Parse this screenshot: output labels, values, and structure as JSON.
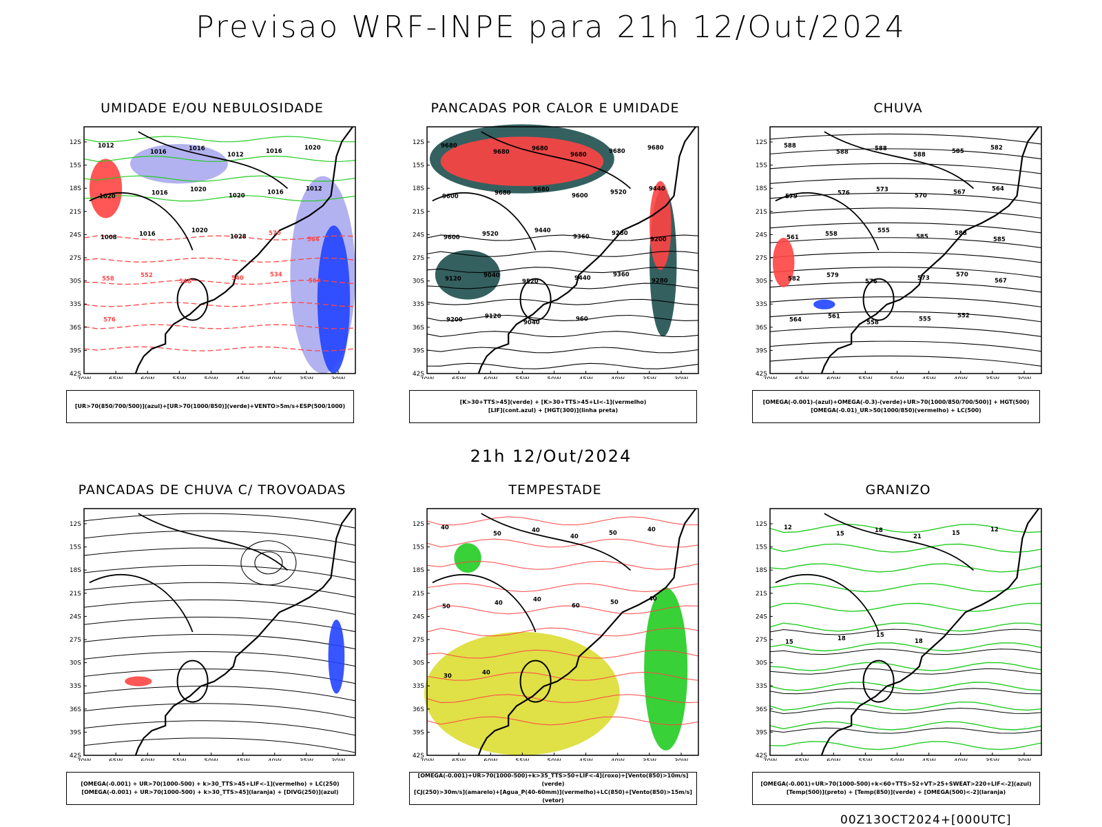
{
  "title": "Previsao WRF-INPE  para 21h 12/Out/2024",
  "mid_title": "21h 12/Out/2024",
  "footer": "00Z13OCT2024+[000UTC]",
  "axes": {
    "lat_labels": [
      "12S",
      "15S",
      "18S",
      "21S",
      "24S",
      "27S",
      "30S",
      "33S",
      "36S",
      "39S",
      "42S"
    ],
    "lon_labels": [
      "70W",
      "65W",
      "60W",
      "55W",
      "50W",
      "45W",
      "40W",
      "35W",
      "30W"
    ]
  },
  "colors": {
    "red": "#ff4444",
    "green": "#22cc22",
    "blue": "#2244ff",
    "lavender": "#aaaaee",
    "teal": "#1f4f4f",
    "yellow": "#dddd33"
  },
  "panels": [
    {
      "title": "UMIDADE E/OU NEBULOSIDADE",
      "legend_lines": [
        "[UR>70(850/700/500)](azul)+[UR>70(1000/850)](verde)+VENTO>5m/s+ESP(500/1000)"
      ],
      "labels": [
        "1012",
        "1016",
        "1016",
        "1012",
        "1016",
        "1020",
        "1020",
        "1016",
        "1020",
        "1020",
        "1016",
        "1012",
        "1008",
        "1016",
        "1020",
        "1028",
        "570",
        "564",
        "558",
        "552",
        "546",
        "540",
        "534",
        "564",
        "576"
      ]
    },
    {
      "title": "PANCADAS POR CALOR E UMIDADE",
      "legend_lines": [
        "[K>30+TTS>45](verde) + [K>30+TTS>45+LI<-1](vermelho)",
        "[LIF](cont.azul) + [HGT(300)](linha preta)"
      ],
      "labels": [
        "9680",
        "9680",
        "9680",
        "9680",
        "9680",
        "9680",
        "9600",
        "9680",
        "9680",
        "9600",
        "9520",
        "9440",
        "9600",
        "9520",
        "9440",
        "9360",
        "9280",
        "9200",
        "9120",
        "9040",
        "9520",
        "9440",
        "9360",
        "9280",
        "9200",
        "9120",
        "9040",
        "960"
      ]
    },
    {
      "title": "CHUVA",
      "legend_lines": [
        "[OMEGA(-0.001)-(azul)+OMEGA(-0.3)-(verde)+UR>70(1000/850/700/500)] + HGT(500)",
        "[OMEGA(-0.01)_UR>50(1000/850)(vermelho) + LC(500)"
      ],
      "labels": [
        "588",
        "588",
        "588",
        "588",
        "585",
        "582",
        "579",
        "576",
        "573",
        "570",
        "567",
        "564",
        "561",
        "558",
        "555",
        "585",
        "588",
        "585",
        "582",
        "579",
        "576",
        "573",
        "570",
        "567",
        "564",
        "561",
        "558",
        "555",
        "552"
      ]
    },
    {
      "title": "PANCADAS DE CHUVA C/ TROVOADAS",
      "legend_lines": [
        "[OMEGA(-0.001) + UR>70(1000-500) + k>30_TTS>45+LIF<-1](vermelho) + LC(250)",
        "[OMEGA(-0.001) + UR>70(1000-500) + k>30_TTS>45](laranja) + [DIVG(250)](azul)"
      ],
      "labels": []
    },
    {
      "title": "TEMPESTADE",
      "legend_lines": [
        "[OMEGA(-0.001)+UR>70(1000-500)+k>35_TTS>50+LIF<-4](roxo)+[Vento(850)>10m/s](verde)",
        "[CJ(250)>30m/s](amarelo)+[Agua_P(40-60mm)](vermelho)+LC(850)+[Vento(850)>15m/s](vetor)"
      ],
      "labels": [
        "40",
        "50",
        "40",
        "40",
        "50",
        "40",
        "50",
        "40",
        "40",
        "60",
        "50",
        "40",
        "30",
        "40"
      ]
    },
    {
      "title": "GRANIZO",
      "legend_lines": [
        "[OMEGA(-0.001)+UR>70(1000-500)+k<60+TTS>52+VT>25+SWEAT>220+LIF<-2](azul)",
        "[Temp(500)](preto) + [Temp(850)](verde) + [OMEGA(500)<-2](laranja)"
      ],
      "labels": [
        "12",
        "15",
        "18",
        "21",
        "15",
        "12",
        "15",
        "18",
        "15",
        "18"
      ]
    }
  ]
}
